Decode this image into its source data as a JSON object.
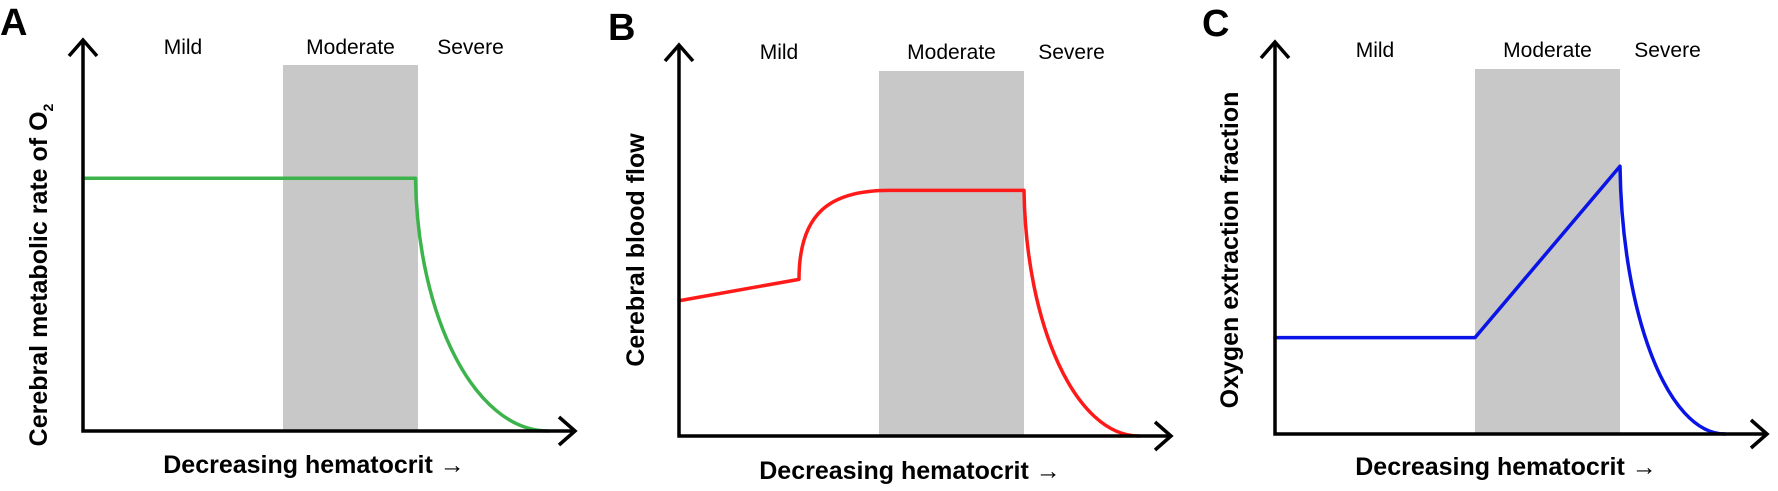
{
  "chart_data": [
    {
      "type": "line",
      "panel_label": "A",
      "color": "#3cb44b",
      "regions": [
        "Mild",
        "Moderate",
        "Severe"
      ],
      "shaded_region": "Moderate",
      "shade_color": "#c8c8c8",
      "xlabel": "Decreasing hematocrit →",
      "ylabel": "Cerebral metabolic rate of O",
      "ylabel_sub": "2",
      "xlim": [
        0,
        10
      ],
      "ylim": [
        0,
        10
      ],
      "series": [
        {
          "name": "CMRO2",
          "segments": [
            {
              "kind": "line",
              "points": [
                [
                  0,
                  7.1
                ],
                [
                  6.65,
                  7.1
                ]
              ]
            },
            {
              "kind": "decay",
              "from": [
                6.65,
                7.1
              ],
              "to": [
                9.3,
                0
              ]
            }
          ]
        }
      ],
      "region_bounds": [
        0,
        4.0,
        6.7,
        10
      ]
    },
    {
      "type": "line",
      "panel_label": "B",
      "color": "#ff1a1a",
      "regions": [
        "Mild",
        "Moderate",
        "Severe"
      ],
      "shaded_region": "Moderate",
      "shade_color": "#c8c8c8",
      "xlabel": "Decreasing hematocrit →",
      "ylabel": "Cerebral blood flow",
      "xlim": [
        0,
        10
      ],
      "ylim": [
        0,
        10
      ],
      "series": [
        {
          "name": "CBF",
          "segments": [
            {
              "kind": "line",
              "points": [
                [
                  0,
                  3.8
                ],
                [
                  2.4,
                  4.4
                ]
              ]
            },
            {
              "kind": "rise",
              "from": [
                2.4,
                4.4
              ],
              "to": [
                4.2,
                6.9
              ]
            },
            {
              "kind": "line",
              "points": [
                [
                  4.2,
                  6.9
                ],
                [
                  6.9,
                  6.9
                ]
              ]
            },
            {
              "kind": "decay",
              "from": [
                6.9,
                6.9
              ],
              "to": [
                9.2,
                0
              ]
            }
          ]
        }
      ],
      "region_bounds": [
        0,
        4.0,
        6.9,
        10
      ]
    },
    {
      "type": "line",
      "panel_label": "C",
      "color": "#0a14e6",
      "regions": [
        "Mild",
        "Moderate",
        "Severe"
      ],
      "shaded_region": "Moderate",
      "shade_color": "#c8c8c8",
      "xlabel": "Decreasing hematocrit →",
      "ylabel": "Oxygen extraction fraction",
      "xlim": [
        0,
        10
      ],
      "ylim": [
        0,
        10
      ],
      "series": [
        {
          "name": "OEF",
          "segments": [
            {
              "kind": "line",
              "points": [
                [
                  0,
                  2.7
                ],
                [
                  4.0,
                  2.7
                ],
                [
                  6.9,
                  7.5
                ]
              ]
            },
            {
              "kind": "decay",
              "from": [
                6.9,
                7.5
              ],
              "to": [
                9.0,
                0
              ]
            }
          ]
        }
      ],
      "region_bounds": [
        0,
        4.0,
        6.9,
        10
      ]
    }
  ]
}
